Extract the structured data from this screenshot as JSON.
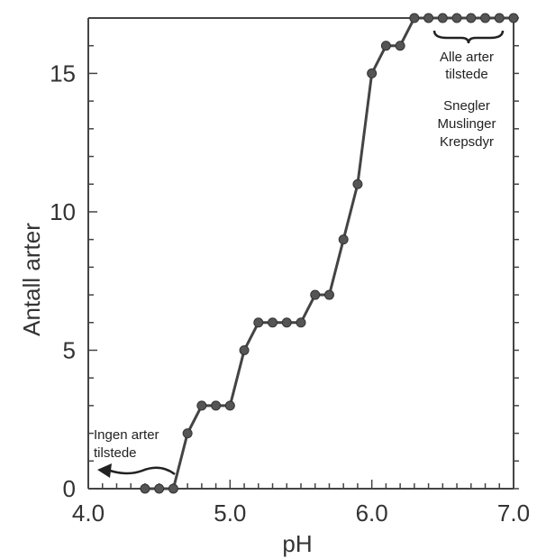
{
  "chart_data": {
    "type": "line",
    "title": "",
    "xlabel": "pH",
    "ylabel": "Antall arter",
    "xlim": [
      4.0,
      7.0
    ],
    "ylim": [
      0,
      17
    ],
    "x_ticks": [
      "4.0",
      "5.0",
      "6.0",
      "7.0"
    ],
    "y_ticks": [
      "0",
      "5",
      "10",
      "15"
    ],
    "grid": false,
    "series": [
      {
        "x": [
          4.4,
          4.5,
          4.6,
          4.7,
          4.8,
          4.9,
          5.0,
          5.1,
          5.2,
          5.3,
          5.4,
          5.5,
          5.6,
          5.7,
          5.8,
          5.9,
          6.0,
          6.1,
          6.2,
          6.3,
          6.4,
          6.5,
          6.6,
          6.7,
          6.8,
          6.9,
          7.0
        ],
        "y": [
          0,
          0,
          0,
          2,
          3,
          3,
          3,
          5,
          6,
          6,
          6,
          6,
          7,
          7,
          9,
          11,
          15,
          16,
          16,
          17,
          17,
          17,
          17,
          17,
          17,
          17,
          17
        ]
      }
    ],
    "annotations": {
      "right_group": [
        "Alle arter",
        "tilstede"
      ],
      "right_species": [
        "Snegler",
        "Muslinger",
        "Krepsdyr"
      ],
      "left_group": [
        "Ingen arter",
        "tilstede"
      ]
    }
  }
}
